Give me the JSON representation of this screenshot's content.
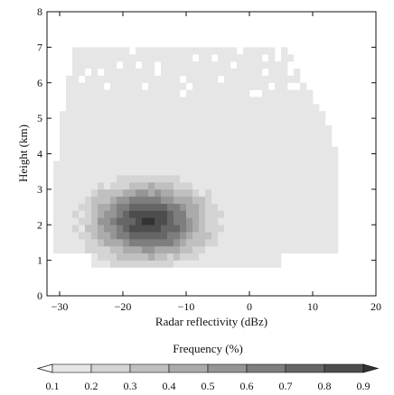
{
  "chart_data": {
    "type": "heatmap",
    "title": "",
    "xlabel": "Radar reflectivity (dBz)",
    "ylabel": "Height (km)",
    "xlim": [
      -32,
      20
    ],
    "ylim": [
      0,
      8
    ],
    "x_ticks": [
      -30,
      -20,
      -10,
      0,
      10,
      20
    ],
    "y_ticks": [
      0,
      1,
      2,
      3,
      4,
      5,
      6,
      7,
      8
    ],
    "grid": false,
    "bin_width_dbz": 1,
    "bin_height_km": 0.2,
    "colorbar": {
      "label": "Frequency (%)",
      "levels": [
        0.1,
        0.2,
        0.3,
        0.4,
        0.5,
        0.6,
        0.7,
        0.8,
        0.9
      ],
      "tick_labels": [
        "0.1",
        "0.2",
        "0.3",
        "0.4",
        "0.5",
        "0.6",
        "0.7",
        "0.8",
        "0.9"
      ],
      "colors": [
        "#e6e6e6",
        "#d4d4d4",
        "#c0c0c0",
        "#ababab",
        "#959595",
        "#7e7e7e",
        "#666666",
        "#4d4d4d",
        "#333333"
      ],
      "extend": "both"
    },
    "distribution": {
      "description": "frequency of reflectivity at each height",
      "core_center": [
        -16,
        2.1
      ],
      "core_max_frequency": 0.9,
      "outer_extent_x": [
        -31,
        14
      ],
      "outer_extent_y": [
        0.8,
        7.0
      ]
    }
  }
}
